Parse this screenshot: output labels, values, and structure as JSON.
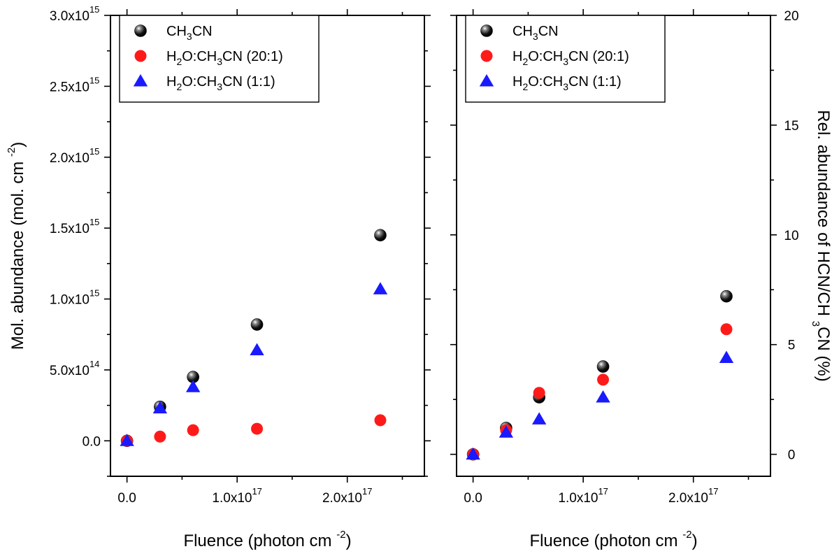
{
  "chart_data": [
    {
      "type": "scatter",
      "panel": "left",
      "xlabel": {
        "main": "Fluence (photon cm",
        "sup": "-2",
        "close": ")"
      },
      "ylabel": {
        "main": "Mol. abundance (mol. cm",
        "sup": "-2",
        "close": ")"
      },
      "xlim": [
        -1.5e+16,
        2.7e+17
      ],
      "ylim": [
        -250000000000000.0,
        3000000000000000.0
      ],
      "xticks": [
        {
          "value": 0,
          "mant": "0.0",
          "exp": ""
        },
        {
          "value": 1e+17,
          "mant": "1.0x10",
          "exp": "17"
        },
        {
          "value": 2e+17,
          "mant": "2.0x10",
          "exp": "17"
        }
      ],
      "yticks": [
        {
          "value": 0,
          "mant": "0.0",
          "exp": ""
        },
        {
          "value": 500000000000000.0,
          "mant": "5.0x10",
          "exp": "14"
        },
        {
          "value": 1000000000000000.0,
          "mant": "1.0x10",
          "exp": "15"
        },
        {
          "value": 1500000000000000.0,
          "mant": "1.5x10",
          "exp": "15"
        },
        {
          "value": 2000000000000000.0,
          "mant": "2.0x10",
          "exp": "15"
        },
        {
          "value": 2500000000000000.0,
          "mant": "2.5x10",
          "exp": "15"
        },
        {
          "value": 3000000000000000.0,
          "mant": "3.0x10",
          "exp": "15"
        }
      ],
      "legend_position": "top-left",
      "series": [
        {
          "name": "CH3CN",
          "marker": "sphere",
          "color": "#000000",
          "x": [
            0,
            3e+16,
            6e+16,
            1.18e+17,
            2.3e+17
          ],
          "y": [
            0,
            240000000000000.0,
            450000000000000.0,
            820000000000000.0,
            1450000000000000.0
          ]
        },
        {
          "name": "H2O:CH3CN (20:1)",
          "marker": "circle",
          "color": "#ff1a1a",
          "x": [
            0,
            3e+16,
            6e+16,
            1.18e+17,
            2.3e+17
          ],
          "y": [
            0,
            30000000000000.0,
            75000000000000.0,
            85000000000000.0,
            145000000000000.0
          ]
        },
        {
          "name": "H2O:CH3CN (1:1)",
          "marker": "triangle",
          "color": "#1a1aff",
          "x": [
            0,
            3e+16,
            6e+16,
            1.18e+17,
            2.3e+17
          ],
          "y": [
            0,
            230000000000000.0,
            380000000000000.0,
            640000000000000.0,
            1070000000000000.0
          ]
        }
      ]
    },
    {
      "type": "scatter",
      "panel": "right",
      "xlabel": {
        "main": "Fluence (photon cm",
        "sup": "-2",
        "close": ")"
      },
      "ylabel": {
        "main": "Rel. abundance of HCN/CH",
        "sub": "3",
        "close": "CN (%)"
      },
      "xlim": [
        -1.5e+16,
        2.7e+17
      ],
      "ylim": [
        -1.0,
        20.0
      ],
      "xticks": [
        {
          "value": 0,
          "mant": "0.0",
          "exp": ""
        },
        {
          "value": 1e+17,
          "mant": "1.0x10",
          "exp": "17"
        },
        {
          "value": 2e+17,
          "mant": "2.0x10",
          "exp": "17"
        }
      ],
      "yticks": [
        {
          "value": 0,
          "mant": "0",
          "exp": ""
        },
        {
          "value": 5,
          "mant": "5",
          "exp": ""
        },
        {
          "value": 10,
          "mant": "10",
          "exp": ""
        },
        {
          "value": 15,
          "mant": "15",
          "exp": ""
        },
        {
          "value": 20,
          "mant": "20",
          "exp": ""
        }
      ],
      "legend_position": "top-left",
      "series": [
        {
          "name": "CH3CN",
          "marker": "sphere",
          "color": "#000000",
          "x": [
            0,
            3e+16,
            6e+16,
            1.18e+17,
            2.3e+17
          ],
          "y": [
            0,
            1.2,
            2.6,
            4.0,
            7.2
          ]
        },
        {
          "name": "H2O:CH3CN (20:1)",
          "marker": "circle",
          "color": "#ff1a1a",
          "x": [
            0,
            3e+16,
            6e+16,
            1.18e+17,
            2.3e+17
          ],
          "y": [
            0,
            1.1,
            2.8,
            3.4,
            5.7
          ]
        },
        {
          "name": "H2O:CH3CN (1:1)",
          "marker": "triangle",
          "color": "#1a1aff",
          "x": [
            0,
            3e+16,
            6e+16,
            1.18e+17,
            2.3e+17
          ],
          "y": [
            0,
            1.0,
            1.6,
            2.6,
            4.4
          ]
        }
      ]
    }
  ],
  "legend": [
    {
      "marker": "sphere",
      "color": "#000000",
      "parts": [
        [
          "CH",
          ""
        ],
        [
          "3",
          "sub"
        ],
        [
          "CN",
          ""
        ]
      ]
    },
    {
      "marker": "circle",
      "color": "#ff1a1a",
      "parts": [
        [
          "H",
          ""
        ],
        [
          "2",
          "sub"
        ],
        [
          "O:CH",
          ""
        ],
        [
          "3",
          "sub"
        ],
        [
          "CN (20:1)",
          ""
        ]
      ]
    },
    {
      "marker": "triangle",
      "color": "#1a1aff",
      "parts": [
        [
          "H",
          ""
        ],
        [
          "2",
          "sub"
        ],
        [
          "O:CH",
          ""
        ],
        [
          "3",
          "sub"
        ],
        [
          "CN (1:1)",
          ""
        ]
      ]
    }
  ]
}
